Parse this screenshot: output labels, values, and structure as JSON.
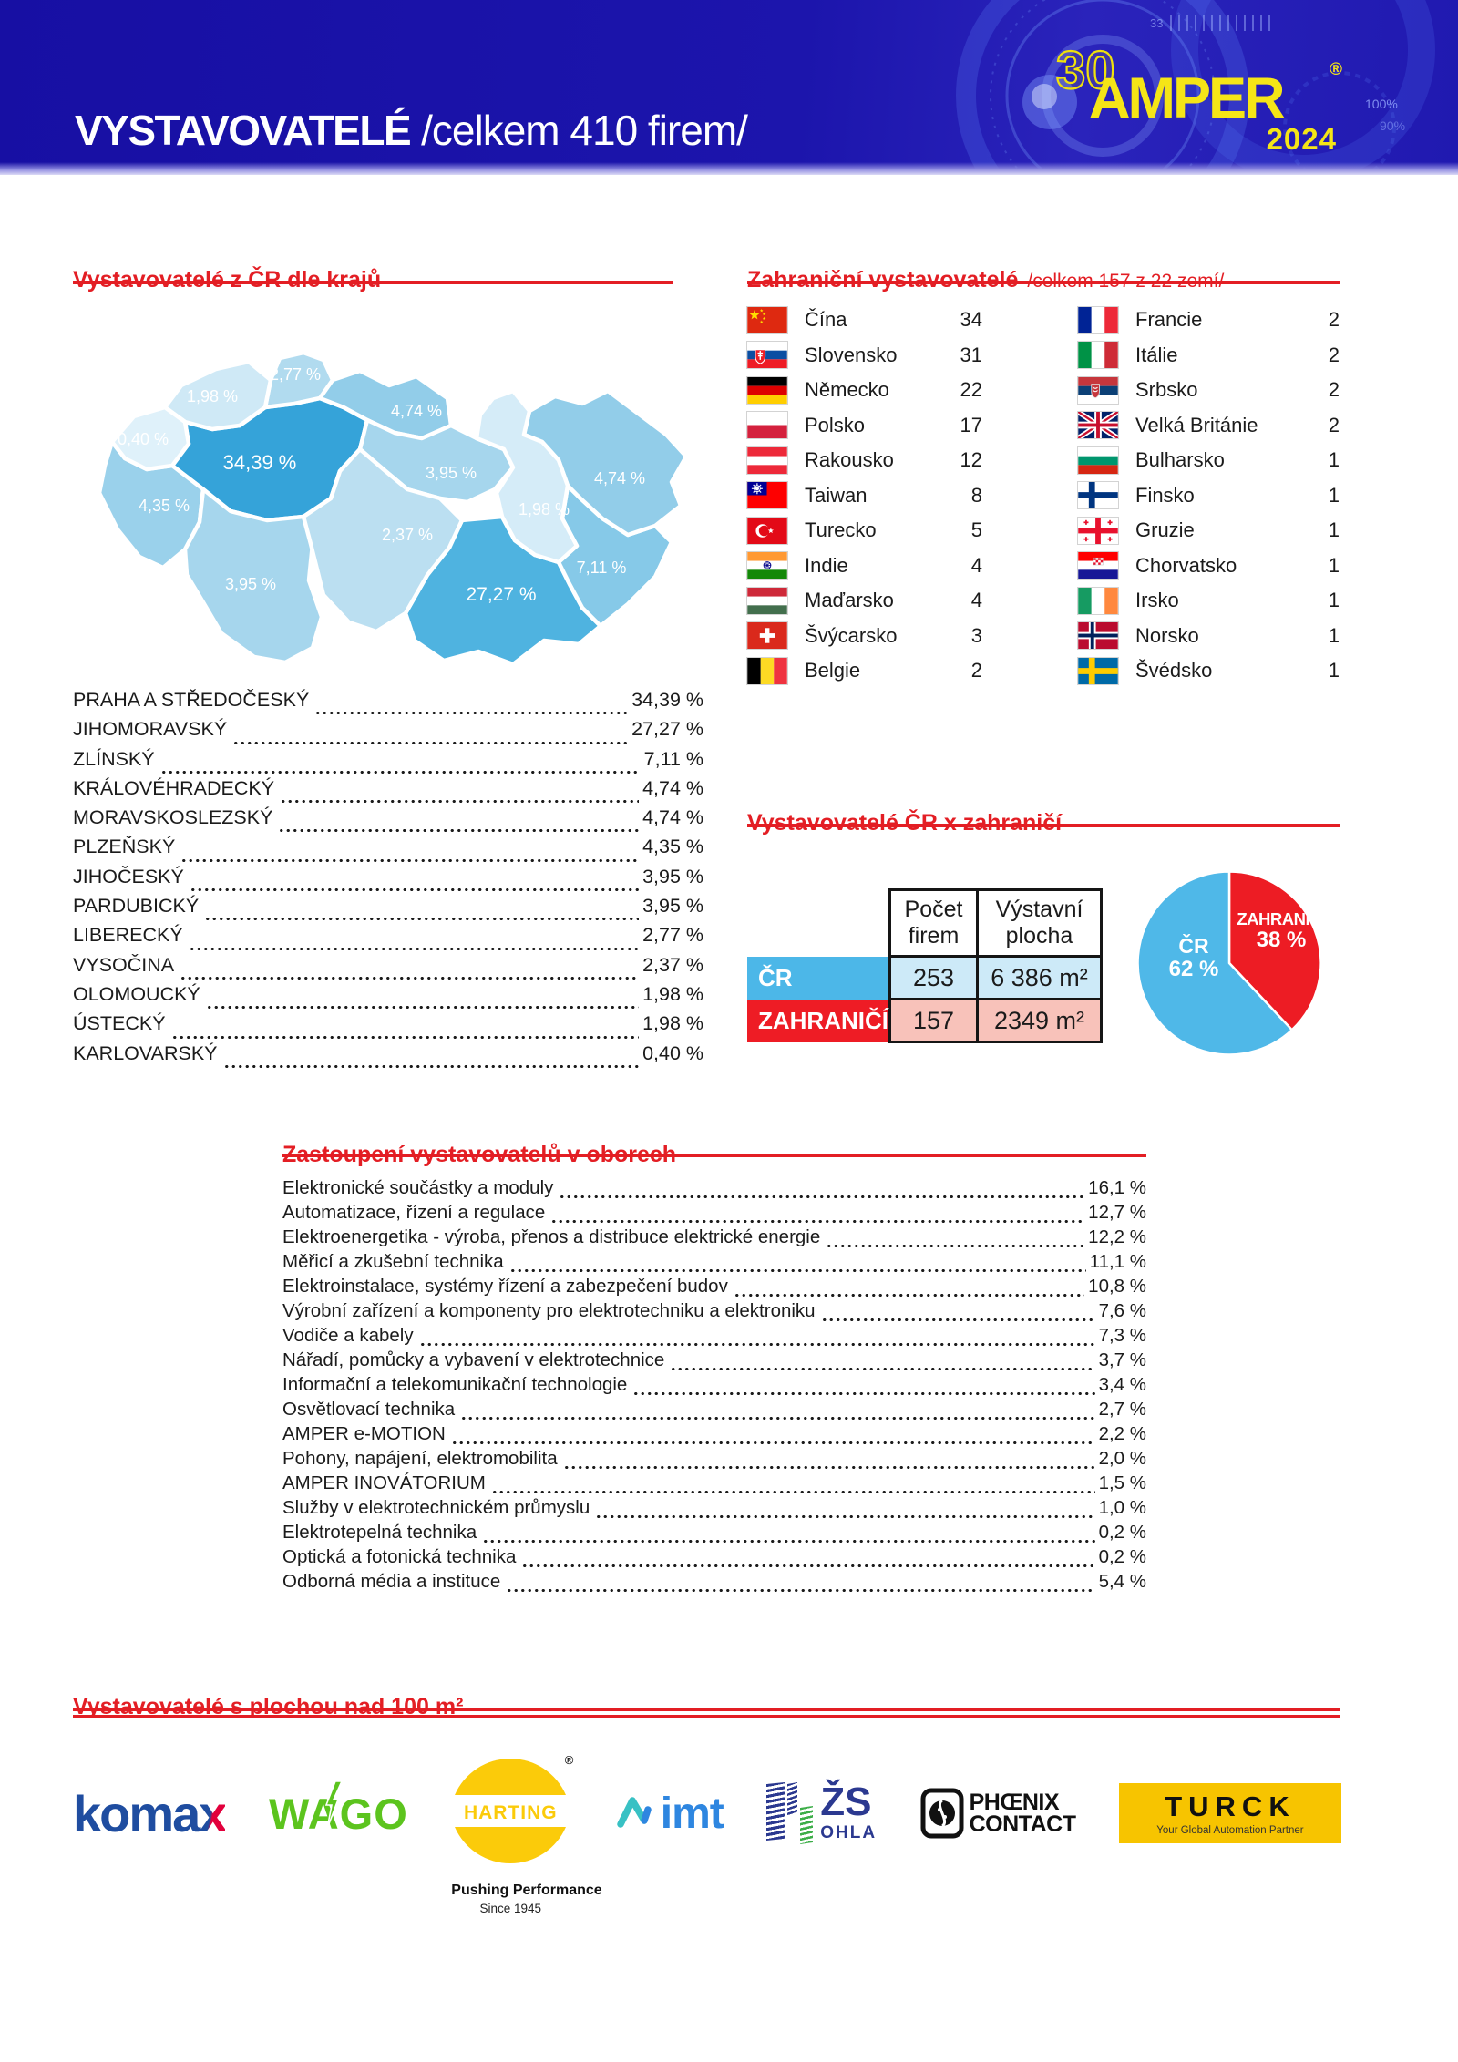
{
  "header": {
    "title": "VYSTAVOVATELÉ",
    "subtitle": "/celkem 410 firem/",
    "logo": {
      "edition": "30",
      "brand": "AMPER",
      "registered": "®",
      "year": "2024"
    },
    "decor": {
      "pct100": "100%",
      "pct90": "90%",
      "ticks_label": "33"
    }
  },
  "regions_section": {
    "title": "Vystavovatelé z ČR dle krajů",
    "map_regions": [
      {
        "id": "praha-stredocesky",
        "name": "Praha a Středočeský",
        "value": "34,39 %",
        "color": "#35A3D9"
      },
      {
        "id": "jihomoravsky",
        "name": "Jihomoravský",
        "value": "27,27 %",
        "color": "#4FB3E0"
      },
      {
        "id": "zlinsky",
        "name": "Zlínský",
        "value": "7,11 %",
        "color": "#86C9E8"
      },
      {
        "id": "kralovehradecky",
        "name": "Královéhradecký",
        "value": "4,74 %",
        "color": "#92CDE9"
      },
      {
        "id": "moravskoslezsky",
        "name": "Moravskoslezský",
        "value": "4,74 %",
        "color": "#92CDE9"
      },
      {
        "id": "plzensky",
        "name": "Plzeňský",
        "value": "4,35 %",
        "color": "#9AD1EB"
      },
      {
        "id": "jihocesky",
        "name": "Jihočeský",
        "value": "3,95 %",
        "color": "#A6D6ED"
      },
      {
        "id": "pardubicky",
        "name": "Pardubický",
        "value": "3,95 %",
        "color": "#A6D6ED"
      },
      {
        "id": "liberecky",
        "name": "Liberecký",
        "value": "2,77 %",
        "color": "#B1DBEF"
      },
      {
        "id": "vysocina",
        "name": "Vysočina",
        "value": "2,37 %",
        "color": "#BBDFF1"
      },
      {
        "id": "olomoucky",
        "name": "Olomoucký",
        "value": "1,98 %",
        "color": "#D5ECF8"
      },
      {
        "id": "ustecky",
        "name": "Ústecký",
        "value": "1,98 %",
        "color": "#CFE9F6"
      },
      {
        "id": "karlovarsky",
        "name": "Karlovarský",
        "value": "0,40 %",
        "color": "#DFF1FA"
      }
    ],
    "list": [
      {
        "name": "PRAHA A STŘEDOČESKÝ",
        "value": "34,39 %"
      },
      {
        "name": "JIHOMORAVSKÝ",
        "value": "27,27 %"
      },
      {
        "name": "ZLÍNSKÝ",
        "value": "7,11 %"
      },
      {
        "name": "KRÁLOVÉHRADECKÝ",
        "value": "4,74 %"
      },
      {
        "name": "MORAVSKOSLEZSKÝ",
        "value": "4,74 %"
      },
      {
        "name": "PLZEŇSKÝ",
        "value": "4,35 %"
      },
      {
        "name": "JIHOČESKÝ",
        "value": "3,95 %"
      },
      {
        "name": "PARDUBICKÝ",
        "value": "3,95 %"
      },
      {
        "name": "LIBERECKÝ",
        "value": "2,77 %"
      },
      {
        "name": "VYSOČINA",
        "value": "2,37 %"
      },
      {
        "name": "OLOMOUCKÝ",
        "value": "1,98 %"
      },
      {
        "name": "ÚSTECKÝ",
        "value": "1,98 %"
      },
      {
        "name": "KARLOVARSKÝ",
        "value": "0,40 %"
      }
    ]
  },
  "foreign_section": {
    "title": "Zahraniční vystavovatelé",
    "subtitle": "/celkem 157 z 22 zemí/",
    "columns": [
      [
        {
          "country": "Čína",
          "count": "34",
          "flag": "china"
        },
        {
          "country": "Slovensko",
          "count": "31",
          "flag": "slovakia"
        },
        {
          "country": "Německo",
          "count": "22",
          "flag": "germany"
        },
        {
          "country": "Polsko",
          "count": "17",
          "flag": "poland"
        },
        {
          "country": "Rakousko",
          "count": "12",
          "flag": "austria"
        },
        {
          "country": "Taiwan",
          "count": "8",
          "flag": "taiwan"
        },
        {
          "country": "Turecko",
          "count": "5",
          "flag": "turkey"
        },
        {
          "country": "Indie",
          "count": "4",
          "flag": "india"
        },
        {
          "country": "Maďarsko",
          "count": "4",
          "flag": "hungary"
        },
        {
          "country": "Švýcarsko",
          "count": "3",
          "flag": "switzerland"
        },
        {
          "country": "Belgie",
          "count": "2",
          "flag": "belgium"
        }
      ],
      [
        {
          "country": "Francie",
          "count": "2",
          "flag": "france"
        },
        {
          "country": "Itálie",
          "count": "2",
          "flag": "italy"
        },
        {
          "country": "Srbsko",
          "count": "2",
          "flag": "serbia"
        },
        {
          "country": "Velká Británie",
          "count": "2",
          "flag": "uk"
        },
        {
          "country": "Bulharsko",
          "count": "1",
          "flag": "bulgaria"
        },
        {
          "country": "Finsko",
          "count": "1",
          "flag": "finland"
        },
        {
          "country": "Gruzie",
          "count": "1",
          "flag": "georgia"
        },
        {
          "country": "Chorvatsko",
          "count": "1",
          "flag": "croatia"
        },
        {
          "country": "Irsko",
          "count": "1",
          "flag": "ireland"
        },
        {
          "country": "Norsko",
          "count": "1",
          "flag": "norway"
        },
        {
          "country": "Švédsko",
          "count": "1",
          "flag": "sweden"
        }
      ]
    ]
  },
  "comparison_section": {
    "title": "Vystavovatelé ČR x zahraničí",
    "table": {
      "col1": "Počet firem",
      "col2": "Výstavní plocha",
      "rows": [
        {
          "label": "ČR",
          "count": "253",
          "area": "6 386 m²"
        },
        {
          "label": "ZAHRANIČÍ",
          "count": "157",
          "area": "2349 m²"
        }
      ]
    },
    "pie": {
      "slices": [
        {
          "label": "ZAHRANIČÍ",
          "pct": "38 %",
          "value": 38,
          "color": "#ED1C24"
        },
        {
          "label": "ČR",
          "pct": "62 %",
          "value": 62,
          "color": "#4FB8E8"
        }
      ]
    }
  },
  "sectors_section": {
    "title": "Zastoupení vystavovatelů v oborech",
    "list": [
      {
        "name": "Elektronické součástky a moduly",
        "value": "16,1 %"
      },
      {
        "name": "Automatizace, řízení a regulace",
        "value": "12,7 %"
      },
      {
        "name": "Elektroenergetika - výroba, přenos a distribuce elektrické energie",
        "value": "12,2 %"
      },
      {
        "name": "Měřicí a zkušební technika",
        "value": "11,1 %"
      },
      {
        "name": "Elektroinstalace, systémy řízení a zabezpečení budov",
        "value": "10,8 %"
      },
      {
        "name": "Výrobní zařízení a komponenty pro elektrotechniku a elektroniku",
        "value": "7,6 %"
      },
      {
        "name": "Vodiče a kabely",
        "value": "7,3 %"
      },
      {
        "name": "Nářadí, pomůcky a vybavení v elektrotechnice",
        "value": "3,7 %"
      },
      {
        "name": "Informační a telekomunikační technologie",
        "value": "3,4 %"
      },
      {
        "name": "Osvětlovací technika",
        "value": "2,7 %"
      },
      {
        "name": "AMPER e-MOTION",
        "value": "2,2 %"
      },
      {
        "name": "Pohony, napájení, elektromobilita",
        "value": "2,0 %"
      },
      {
        "name": "AMPER INOVÁTORIUM",
        "value": "1,5 %"
      },
      {
        "name": "Služby v elektrotechnickém průmyslu",
        "value": "1,0 %"
      },
      {
        "name": "Elektrotepelná technika",
        "value": "0,2 %"
      },
      {
        "name": "Optická a fotonická technika",
        "value": "0,2 %"
      },
      {
        "name": "Odborná média a instituce",
        "value": "5,4 %"
      }
    ]
  },
  "area_section": {
    "title": "Vystavovatelé s plochou nad 100 m²",
    "logos": {
      "komax": {
        "text": "koma",
        "x": "x"
      },
      "wago": {
        "text": "WAGO"
      },
      "harting": {
        "text": "HARTING",
        "registered": "®",
        "caption1": "Pushing Performance",
        "caption2": "Since 1945"
      },
      "imt": {
        "text": "imt"
      },
      "zs_ohla": {
        "zs": "ŽS",
        "ohla": "OHLA"
      },
      "phoenix": {
        "line1": "PHŒNIX",
        "line2": "CONTACT"
      },
      "turck": {
        "text": "TURCK",
        "tagline": "Your Global Automation Partner"
      }
    }
  },
  "chart_data": [
    {
      "type": "pie",
      "title": "Vystavovatelé ČR x zahraničí",
      "series": [
        {
          "name": "ČR",
          "value": 62
        },
        {
          "name": "ZAHRANIČÍ",
          "value": 38
        }
      ],
      "unit": "%",
      "colors": {
        "ČR": "#4FB8E8",
        "ZAHRANIČÍ": "#ED1C24"
      }
    },
    {
      "type": "heatmap",
      "subtype": "choropleth-map-czech-regions",
      "title": "Vystavovatelé z ČR dle krajů",
      "categories": [
        "PRAHA A STŘEDOČESKÝ",
        "JIHOMORAVSKÝ",
        "ZLÍNSKÝ",
        "KRÁLOVÉHRADECKÝ",
        "MORAVSKOSLEZSKÝ",
        "PLZEŇSKÝ",
        "JIHOČESKÝ",
        "PARDUBICKÝ",
        "LIBERECKÝ",
        "VYSOČINA",
        "OLOMOUCKÝ",
        "ÚSTECKÝ",
        "KARLOVARSKÝ"
      ],
      "values": [
        34.39,
        27.27,
        7.11,
        4.74,
        4.74,
        4.35,
        3.95,
        3.95,
        2.77,
        2.37,
        1.98,
        1.98,
        0.4
      ],
      "unit": "%"
    }
  ]
}
